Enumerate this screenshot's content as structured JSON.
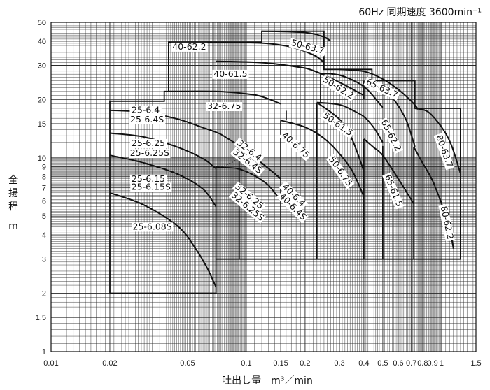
{
  "chart_data": {
    "type": "line",
    "title": "60Hz 同期速度 3600min⁻¹",
    "xlabel": "吐出し量　m³／min",
    "ylabel_chars": [
      "全",
      "揚",
      "程"
    ],
    "ylabel_unit": "m",
    "x_scale": "log",
    "y_scale": "log",
    "xlim": [
      0.01,
      1.5
    ],
    "ylim": [
      1,
      50
    ],
    "grid": true,
    "x_ticks": [
      {
        "v": 0.01,
        "t": "0.01"
      },
      {
        "v": 0.02,
        "t": "0.02"
      },
      {
        "v": 0.05,
        "t": "0.05"
      },
      {
        "v": 0.1,
        "t": "0.1"
      },
      {
        "v": 0.15,
        "t": "0.15"
      },
      {
        "v": 0.2,
        "t": "0.2"
      },
      {
        "v": 0.3,
        "t": "0.3"
      },
      {
        "v": 0.4,
        "t": "0.4"
      },
      {
        "v": 0.5,
        "t": "0.5"
      },
      {
        "v": 0.6,
        "t": "0.6"
      },
      {
        "v": 0.7,
        "t": "0.7"
      },
      {
        "v": 0.8,
        "t": "0.8"
      },
      {
        "v": 0.9,
        "t": "0.9"
      },
      {
        "v": 1.0,
        "t": "1"
      },
      {
        "v": 1.5,
        "t": "1.5"
      }
    ],
    "y_ticks": [
      {
        "v": 1,
        "t": "1"
      },
      {
        "v": 1.5,
        "t": "1.5"
      },
      {
        "v": 2,
        "t": "2"
      },
      {
        "v": 3,
        "t": "3"
      },
      {
        "v": 4,
        "t": "4"
      },
      {
        "v": 5,
        "t": "5"
      },
      {
        "v": 6,
        "t": "6"
      },
      {
        "v": 7,
        "t": "7"
      },
      {
        "v": 8,
        "t": "8"
      },
      {
        "v": 9,
        "t": "9"
      },
      {
        "v": 10,
        "t": "10"
      },
      {
        "v": 15,
        "t": "15"
      },
      {
        "v": 20,
        "t": "20"
      },
      {
        "v": 30,
        "t": "30"
      },
      {
        "v": 40,
        "t": "40"
      },
      {
        "v": 50,
        "t": "50"
      }
    ],
    "regions": [
      [
        [
          0.02,
          2.0
        ],
        [
          0.02,
          19.6
        ],
        [
          0.038,
          19.6
        ],
        [
          0.038,
          22.0
        ],
        [
          0.04,
          22.0
        ],
        [
          0.04,
          39.5
        ],
        [
          0.12,
          39.5
        ],
        [
          0.12,
          45.0
        ],
        [
          0.25,
          45.0
        ],
        [
          0.25,
          28.6
        ],
        [
          0.44,
          28.6
        ],
        [
          0.44,
          25.0
        ],
        [
          0.73,
          25.0
        ],
        [
          0.73,
          18.0
        ],
        [
          1.25,
          18.0
        ],
        [
          1.25,
          3.0
        ],
        [
          0.07,
          3.0
        ],
        [
          0.07,
          2.0
        ],
        [
          0.02,
          2.0
        ]
      ],
      [
        [
          0.07,
          3.0
        ],
        [
          0.07,
          9.0
        ]
      ],
      [
        [
          0.092,
          3.0
        ],
        [
          0.092,
          10.0
        ]
      ],
      [
        [
          0.15,
          3.0
        ],
        [
          0.15,
          15.6
        ]
      ],
      [
        [
          0.16,
          15.6
        ],
        [
          0.16,
          17.5
        ]
      ],
      [
        [
          0.23,
          3.0
        ],
        [
          0.23,
          19.3
        ]
      ],
      [
        [
          0.24,
          19.3
        ],
        [
          0.24,
          27.3
        ]
      ],
      [
        [
          0.4,
          3.0
        ],
        [
          0.4,
          12.5
        ]
      ],
      [
        [
          0.4,
          20.0
        ],
        [
          0.4,
          25.0
        ]
      ],
      [
        [
          0.5,
          3.0
        ],
        [
          0.5,
          11.5
        ]
      ],
      [
        [
          0.72,
          3.0
        ],
        [
          0.72,
          11.4
        ]
      ]
    ],
    "series": [
      {
        "name": "25-6.08S",
        "points": [
          [
            0.02,
            6.6
          ],
          [
            0.03,
            5.7
          ],
          [
            0.045,
            4.4
          ],
          [
            0.055,
            3.4
          ],
          [
            0.063,
            2.7
          ],
          [
            0.07,
            2.15
          ]
        ]
      },
      {
        "name": "25-6.15",
        "points": [
          [
            0.02,
            10.3
          ],
          [
            0.03,
            9.4
          ],
          [
            0.045,
            8.2
          ],
          [
            0.06,
            6.9
          ],
          [
            0.07,
            5.6
          ]
        ]
      },
      {
        "name": "25-6.25",
        "points": [
          [
            0.02,
            13.4
          ],
          [
            0.03,
            12.8
          ],
          [
            0.045,
            11.3
          ],
          [
            0.06,
            9.9
          ],
          [
            0.07,
            8.8
          ]
        ]
      },
      {
        "name": "25-6.4",
        "points": [
          [
            0.02,
            17.6
          ],
          [
            0.03,
            17.2
          ],
          [
            0.045,
            15.8
          ],
          [
            0.06,
            14.3
          ],
          [
            0.072,
            13.4
          ],
          [
            0.08,
            12.6
          ],
          [
            0.09,
            11.7
          ],
          [
            0.1,
            10.8
          ],
          [
            0.12,
            9.4
          ],
          [
            0.15,
            7.8
          ]
        ]
      },
      {
        "name": "32-6.25",
        "points": [
          [
            0.07,
            9.0
          ],
          [
            0.075,
            8.9
          ],
          [
            0.09,
            8.8
          ],
          [
            0.11,
            8.1
          ],
          [
            0.13,
            7.2
          ],
          [
            0.15,
            6.0
          ]
        ]
      },
      {
        "name": "32-6.75",
        "points": [
          [
            0.04,
            22.0
          ],
          [
            0.07,
            22.0
          ],
          [
            0.1,
            21.4
          ],
          [
            0.12,
            20.7
          ],
          [
            0.15,
            19.0
          ]
        ]
      },
      {
        "name": "40-6.75",
        "points": [
          [
            0.15,
            15.6
          ],
          [
            0.2,
            14.4
          ],
          [
            0.25,
            12.6
          ],
          [
            0.3,
            10.5
          ],
          [
            0.35,
            8.5
          ],
          [
            0.4,
            6.3
          ]
        ]
      },
      {
        "name": "40-61.5",
        "points": [
          [
            0.07,
            31.5
          ],
          [
            0.12,
            31.0
          ],
          [
            0.18,
            29.5
          ],
          [
            0.22,
            28.2
          ],
          [
            0.3,
            24.5
          ],
          [
            0.4,
            21.0
          ]
        ]
      },
      {
        "name": "40-62.2",
        "points": [
          [
            0.04,
            39.5
          ],
          [
            0.1,
            39.4
          ],
          [
            0.16,
            37.8
          ],
          [
            0.22,
            34.0
          ],
          [
            0.25,
            31.0
          ]
        ]
      },
      {
        "name": "50-61.5",
        "points": [
          [
            0.23,
            19.3
          ],
          [
            0.3,
            18.8
          ],
          [
            0.35,
            17.6
          ],
          [
            0.4,
            16.3
          ],
          [
            0.45,
            14.3
          ],
          [
            0.5,
            12.0
          ]
        ]
      },
      {
        "name": "50-62.2",
        "points": [
          [
            0.24,
            27.3
          ],
          [
            0.3,
            26.7
          ],
          [
            0.37,
            24.5
          ],
          [
            0.42,
            22.3
          ],
          [
            0.47,
            19.6
          ],
          [
            0.5,
            18.2
          ]
        ]
      },
      {
        "name": "50-63.7",
        "points": [
          [
            0.12,
            45.0
          ],
          [
            0.2,
            44.3
          ],
          [
            0.25,
            42.0
          ],
          [
            0.27,
            40.0
          ]
        ]
      },
      {
        "name": "50-6.75",
        "points": [
          [
            0.23,
            19.3
          ],
          [
            0.3,
            15.8
          ],
          [
            0.35,
            12.3
          ],
          [
            0.4,
            8.5
          ]
        ]
      },
      {
        "name": "65-61.5",
        "points": [
          [
            0.4,
            12.5
          ],
          [
            0.45,
            11.3
          ],
          [
            0.5,
            10.3
          ],
          [
            0.6,
            7.8
          ],
          [
            0.72,
            5.8
          ]
        ]
      },
      {
        "name": "65-62.2",
        "points": [
          [
            0.44,
            25.0
          ],
          [
            0.5,
            23.0
          ],
          [
            0.58,
            19.5
          ],
          [
            0.66,
            15.6
          ],
          [
            0.73,
            11.4
          ]
        ]
      },
      {
        "name": "65-63.7",
        "points": [
          [
            0.3,
            28.6
          ],
          [
            0.4,
            27.9
          ],
          [
            0.5,
            25.5
          ],
          [
            0.6,
            22.5
          ],
          [
            0.7,
            19.6
          ],
          [
            0.76,
            17.8
          ]
        ]
      },
      {
        "name": "80-62.2",
        "points": [
          [
            0.72,
            11.4
          ],
          [
            0.8,
            9.4
          ],
          [
            0.9,
            7.6
          ],
          [
            1.0,
            5.8
          ],
          [
            1.1,
            4.3
          ],
          [
            1.15,
            3.4
          ]
        ]
      },
      {
        "name": "80-63.7",
        "points": [
          [
            0.73,
            18.0
          ],
          [
            0.85,
            17.3
          ],
          [
            1.0,
            14.4
          ],
          [
            1.12,
            11.7
          ],
          [
            1.25,
            8.3
          ]
        ]
      }
    ],
    "dashed": [
      {
        "points": [
          [
            0.07,
            9.0
          ],
          [
            0.075,
            8.95
          ],
          [
            0.092,
            9.9
          ]
        ]
      }
    ],
    "labels": [
      {
        "text": "60Hz 同期速度 3600min",
        "sup": "-1",
        "x": 0,
        "y": 0
      }
    ]
  },
  "curve_labels": [
    {
      "text": "25-6.4",
      "x": 0.0305,
      "y": 17.2,
      "rot": 0
    },
    {
      "text": "25-6.4S",
      "x": 0.031,
      "y": 15.4,
      "rot": 0
    },
    {
      "text": "25-6.25",
      "x": 0.0315,
      "y": 11.6,
      "rot": 0
    },
    {
      "text": "25-6.25S",
      "x": 0.032,
      "y": 10.3,
      "rot": 0
    },
    {
      "text": "25-6.15",
      "x": 0.0315,
      "y": 7.6,
      "rot": 0
    },
    {
      "text": "25-6.15S",
      "x": 0.0325,
      "y": 6.9,
      "rot": 0
    },
    {
      "text": "25-6.08S",
      "x": 0.033,
      "y": 4.3,
      "rot": 0
    },
    {
      "text": "32-6.75",
      "x": 0.077,
      "y": 18.0,
      "rot": 0
    },
    {
      "text": "32-6.4",
      "x": 0.102,
      "y": 10.7,
      "rot": 38
    },
    {
      "text": "32-6.4S",
      "x": 0.1,
      "y": 9.4,
      "rot": 38
    },
    {
      "text": "32-6.25",
      "x": 0.102,
      "y": 6.2,
      "rot": 40
    },
    {
      "text": "32-6.25S",
      "x": 0.1,
      "y": 5.5,
      "rot": 40
    },
    {
      "text": "40-62.2",
      "x": 0.051,
      "y": 36.5,
      "rot": 0
    },
    {
      "text": "40-61.5",
      "x": 0.083,
      "y": 26.4,
      "rot": 0
    },
    {
      "text": "40-6.75",
      "x": 0.176,
      "y": 11.4,
      "rot": 42
    },
    {
      "text": "40-6.4",
      "x": 0.172,
      "y": 6.3,
      "rot": 45
    },
    {
      "text": "40-6.4S",
      "x": 0.17,
      "y": 5.5,
      "rot": 45
    },
    {
      "text": "50-63.7",
      "x": 0.205,
      "y": 36.5,
      "rot": 15
    },
    {
      "text": "50-62.2",
      "x": 0.292,
      "y": 22.5,
      "rot": 32
    },
    {
      "text": "50-61.5",
      "x": 0.29,
      "y": 14.6,
      "rot": 35
    },
    {
      "text": "50-6.75",
      "x": 0.298,
      "y": 8.4,
      "rot": 55
    },
    {
      "text": "65-63.7",
      "x": 0.49,
      "y": 22.3,
      "rot": 25
    },
    {
      "text": "65-62.2",
      "x": 0.54,
      "y": 12.9,
      "rot": 63
    },
    {
      "text": "65-61.5",
      "x": 0.555,
      "y": 6.7,
      "rot": 68
    },
    {
      "text": "80-63.7",
      "x": 1.01,
      "y": 10.7,
      "rot": 70
    },
    {
      "text": "80-62.2",
      "x": 1.04,
      "y": 4.6,
      "rot": 78
    }
  ]
}
